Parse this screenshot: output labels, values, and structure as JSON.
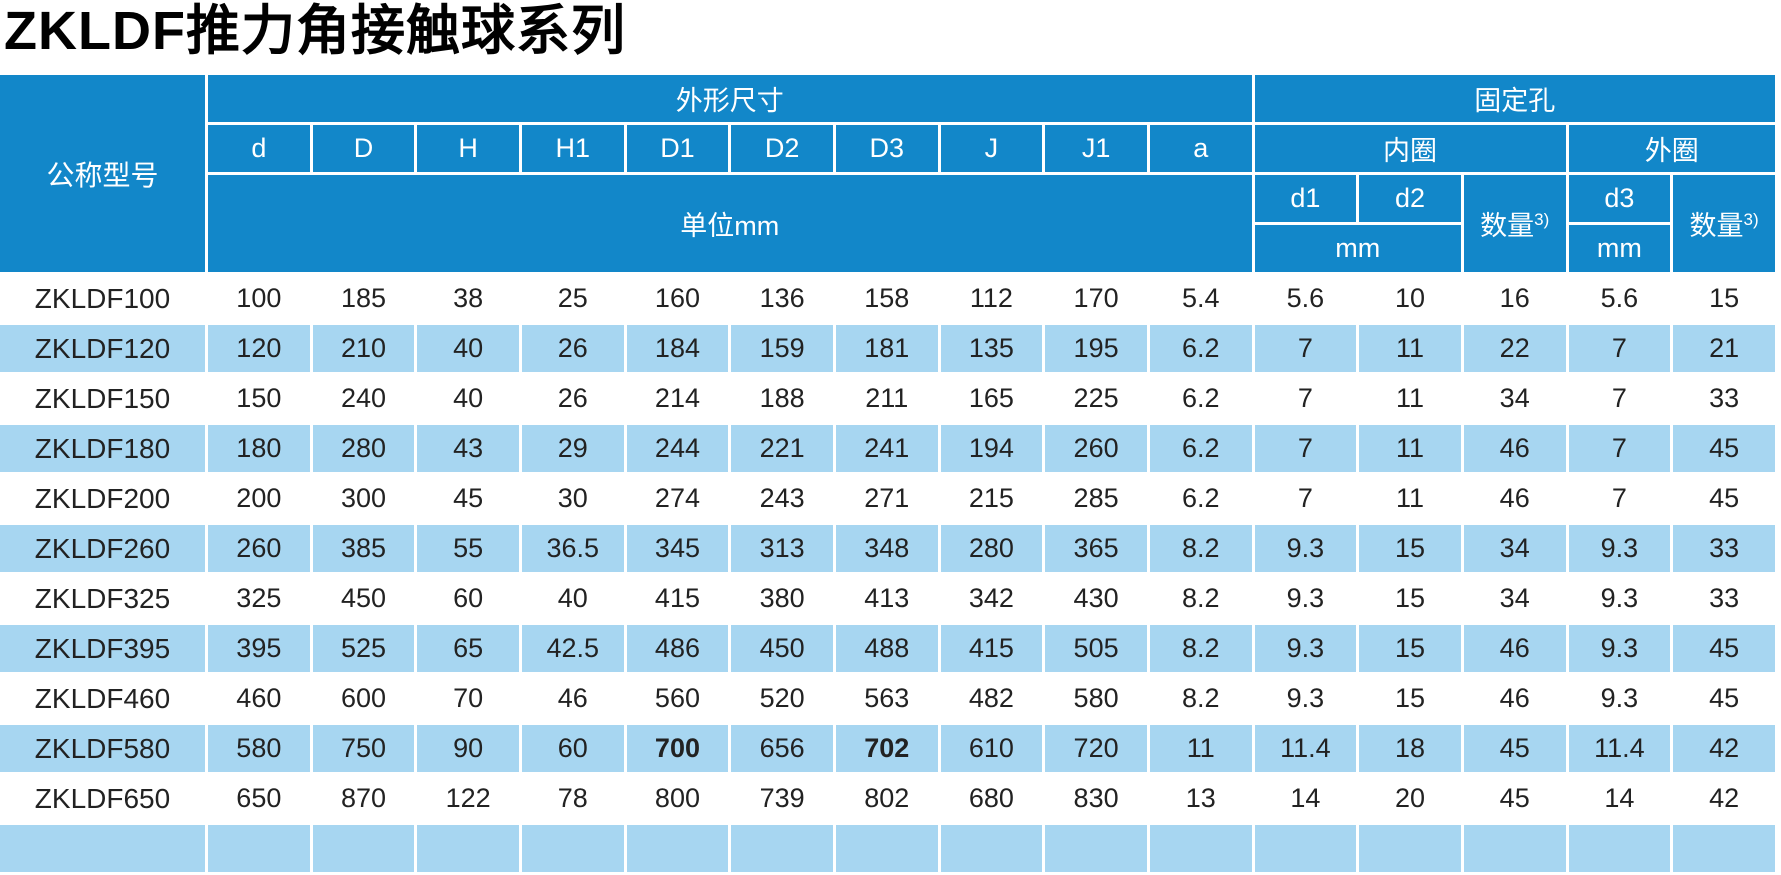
{
  "page_title": "ZKLDF推力角接触球系列",
  "colors": {
    "header_blue": "#1287C9",
    "stripe_blue": "#A7D6F1",
    "text_dark": "#222222"
  },
  "table": {
    "header": {
      "model_col": "公称型号",
      "dims_group": "外形尺寸",
      "holes_group": "固定孔",
      "dim_cols": [
        "d",
        "D",
        "H",
        "H1",
        "D1",
        "D2",
        "D3",
        "J",
        "J1",
        "a"
      ],
      "dims_unit": "单位mm",
      "inner_ring": "内圈",
      "outer_ring": "外圈",
      "d1": "d1",
      "d2": "d2",
      "d3": "d3",
      "qty_label": "数量",
      "qty_sup": "3)",
      "mm": "mm"
    },
    "rows": [
      {
        "model": "ZKLDF100",
        "values": [
          "100",
          "185",
          "38",
          "25",
          "160",
          "136",
          "158",
          "112",
          "170",
          "5.4",
          "5.6",
          "10",
          "16",
          "5.6",
          "15"
        ]
      },
      {
        "model": "ZKLDF120",
        "values": [
          "120",
          "210",
          "40",
          "26",
          "184",
          "159",
          "181",
          "135",
          "195",
          "6.2",
          "7",
          "11",
          "22",
          "7",
          "21"
        ]
      },
      {
        "model": "ZKLDF150",
        "values": [
          "150",
          "240",
          "40",
          "26",
          "214",
          "188",
          "211",
          "165",
          "225",
          "6.2",
          "7",
          "11",
          "34",
          "7",
          "33"
        ]
      },
      {
        "model": "ZKLDF180",
        "values": [
          "180",
          "280",
          "43",
          "29",
          "244",
          "221",
          "241",
          "194",
          "260",
          "6.2",
          "7",
          "11",
          "46",
          "7",
          "45"
        ]
      },
      {
        "model": "ZKLDF200",
        "values": [
          "200",
          "300",
          "45",
          "30",
          "274",
          "243",
          "271",
          "215",
          "285",
          "6.2",
          "7",
          "11",
          "46",
          "7",
          "45"
        ]
      },
      {
        "model": "ZKLDF260",
        "values": [
          "260",
          "385",
          "55",
          "36.5",
          "345",
          "313",
          "348",
          "280",
          "365",
          "8.2",
          "9.3",
          "15",
          "34",
          "9.3",
          "33"
        ]
      },
      {
        "model": "ZKLDF325",
        "values": [
          "325",
          "450",
          "60",
          "40",
          "415",
          "380",
          "413",
          "342",
          "430",
          "8.2",
          "9.3",
          "15",
          "34",
          "9.3",
          "33"
        ]
      },
      {
        "model": "ZKLDF395",
        "values": [
          "395",
          "525",
          "65",
          "42.5",
          "486",
          "450",
          "488",
          "415",
          "505",
          "8.2",
          "9.3",
          "15",
          "46",
          "9.3",
          "45"
        ]
      },
      {
        "model": "ZKLDF460",
        "values": [
          "460",
          "600",
          "70",
          "46",
          "560",
          "520",
          "563",
          "482",
          "580",
          "8.2",
          "9.3",
          "15",
          "46",
          "9.3",
          "45"
        ]
      },
      {
        "model": "ZKLDF580",
        "values": [
          "580",
          "750",
          "90",
          "60",
          "700",
          "656",
          "702",
          "610",
          "720",
          "11",
          "11.4",
          "18",
          "45",
          "11.4",
          "42"
        ]
      },
      {
        "model": "ZKLDF650",
        "values": [
          "650",
          "870",
          "122",
          "78",
          "800",
          "739",
          "802",
          "680",
          "830",
          "13",
          "14",
          "20",
          "45",
          "14",
          "42"
        ]
      }
    ],
    "emphasized_cells": [
      {
        "row": 9,
        "col": 4
      },
      {
        "row": 9,
        "col": 6
      }
    ]
  }
}
